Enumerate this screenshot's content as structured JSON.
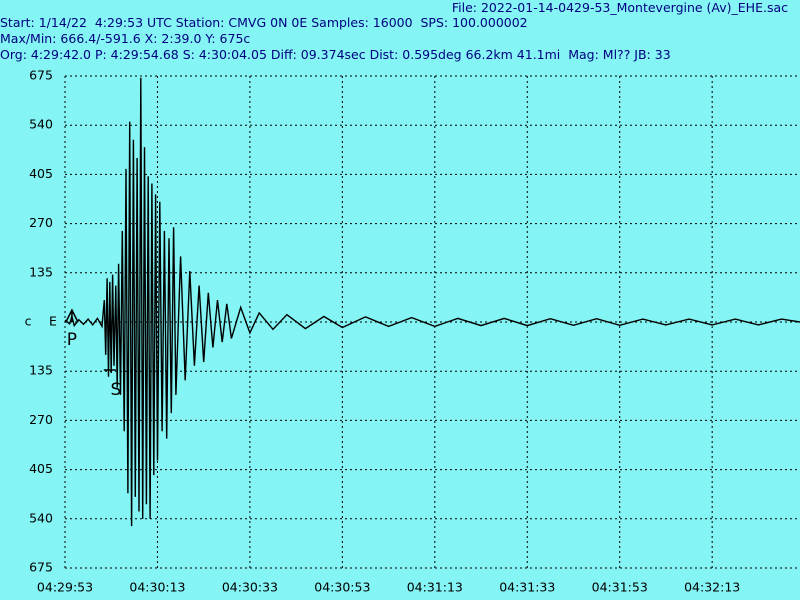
{
  "header": {
    "file": "File: 2022-01-14-0429-53_Montevergine (Av)_EHE.sac",
    "start": "Start: 1/14/22  4:29:53 UTC Station: CMVG 0N 0E Samples: 16000  SPS: 100.000002",
    "maxmin": "Max/Min: 666.4/-591.6 X: 2:39.0 Y: 675c",
    "org": "Org: 4:29:42.0 P: 4:29:54.68 S: 4:30:04.05 Diff: 09.374sec Dist: 0.595deg 66.2km 41.1mi  Mag: Ml?? JB: 33"
  },
  "chart_data": {
    "type": "line",
    "channel_label": "c",
    "component_label": "E",
    "xlim": [
      0,
      159
    ],
    "ylim": [
      -675,
      675
    ],
    "xticks": [
      {
        "value": 0,
        "label": "04:29:53"
      },
      {
        "value": 20,
        "label": "04:30:13"
      },
      {
        "value": 40,
        "label": "04:30:33"
      },
      {
        "value": 60,
        "label": "04:30:53"
      },
      {
        "value": 80,
        "label": "04:31:13"
      },
      {
        "value": 100,
        "label": "04:31:33"
      },
      {
        "value": 120,
        "label": "04:31:53"
      },
      {
        "value": 140,
        "label": "04:32:13"
      }
    ],
    "yticks": [
      {
        "value": -675,
        "label": "675"
      },
      {
        "value": -540,
        "label": "540"
      },
      {
        "value": -405,
        "label": "405"
      },
      {
        "value": -270,
        "label": "270"
      },
      {
        "value": -135,
        "label": "135"
      },
      0,
      135,
      270,
      405,
      540,
      675
    ],
    "grid": true,
    "color": "#000000",
    "picks": [
      {
        "label": "P",
        "x": 1.5
      },
      {
        "label": "S",
        "x": 9.7
      }
    ],
    "series": [
      {
        "x": [
          0,
          1,
          1.5,
          2,
          3,
          4,
          5,
          6,
          7,
          8,
          8.5,
          8.8,
          9.1,
          9.4,
          9.7,
          10,
          10.3,
          10.6,
          11,
          11.3,
          11.6,
          12,
          12.4,
          12.8,
          13.2,
          13.6,
          14,
          14.4,
          14.8,
          15.2,
          15.6,
          16,
          16.4,
          16.8,
          17.2,
          17.6,
          18,
          18.4,
          18.8,
          19.2,
          19.6,
          20,
          20.5,
          21,
          21.5,
          22,
          22.5,
          23,
          23.5,
          24,
          25,
          26,
          27,
          28,
          29,
          30,
          31,
          32,
          33,
          34,
          35,
          36,
          38,
          40,
          42,
          45,
          48,
          52,
          56,
          60,
          65,
          70,
          75,
          80,
          85,
          90,
          95,
          100,
          105,
          110,
          115,
          120,
          125,
          130,
          135,
          140,
          145,
          150,
          155,
          159
        ],
        "values": [
          5,
          -5,
          15,
          -10,
          6,
          -6,
          8,
          -8,
          10,
          -12,
          60,
          -90,
          120,
          -150,
          110,
          -140,
          130,
          -120,
          100,
          -180,
          160,
          -200,
          250,
          -300,
          420,
          -470,
          550,
          -560,
          500,
          -480,
          450,
          -520,
          670,
          -540,
          480,
          -500,
          400,
          -540,
          380,
          -420,
          350,
          -380,
          330,
          -300,
          250,
          -320,
          230,
          -250,
          260,
          -200,
          180,
          -160,
          140,
          -120,
          100,
          -110,
          80,
          -70,
          60,
          -55,
          50,
          -45,
          40,
          -30,
          25,
          -20,
          20,
          -18,
          15,
          -15,
          14,
          -12,
          12,
          -12,
          10,
          -10,
          10,
          -10,
          9,
          -9,
          9,
          -9,
          8,
          -8,
          8,
          -8,
          8,
          -8,
          8,
          0
        ]
      }
    ]
  }
}
